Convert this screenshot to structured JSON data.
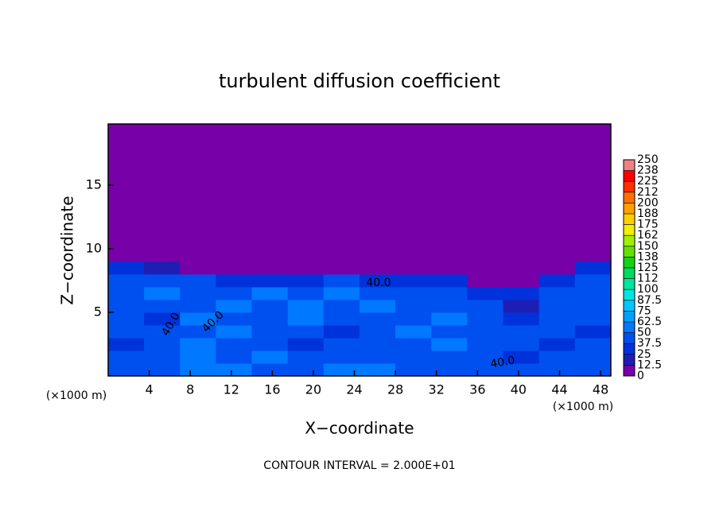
{
  "chart_data": {
    "type": "heatmap",
    "title": "turbulent diffusion coefficient",
    "x_label": "X−coordinate",
    "y_label": "Z−coordinate",
    "x_unit": "(×1000 m)",
    "footnote": "CONTOUR INTERVAL = 2.000E+01",
    "contour_labels": [
      "40.0",
      "40.0",
      "40.0",
      "40.0"
    ],
    "xlim": [
      0,
      49
    ],
    "ylim": [
      0,
      19.8
    ],
    "xticks": [
      4,
      8,
      12,
      16,
      20,
      24,
      28,
      32,
      36,
      40,
      44,
      48
    ],
    "yticks": [
      5,
      10,
      15
    ],
    "x_edges": [
      0,
      3.5,
      7,
      10.5,
      14,
      17.5,
      21,
      24.5,
      28,
      31.5,
      35,
      38.5,
      42,
      45.5,
      49
    ],
    "z_edges": [
      0,
      1,
      2,
      3,
      4,
      5,
      6,
      7,
      8,
      9,
      19.8
    ],
    "values": [
      [
        45,
        40,
        55,
        50,
        45,
        45,
        55,
        60,
        45,
        40,
        45,
        40,
        45,
        40
      ],
      [
        40,
        45,
        50,
        45,
        55,
        40,
        40,
        45,
        40,
        45,
        40,
        35,
        40,
        40
      ],
      [
        35,
        40,
        55,
        40,
        45,
        35,
        40,
        40,
        45,
        50,
        40,
        40,
        35,
        40
      ],
      [
        40,
        45,
        45,
        50,
        40,
        40,
        35,
        40,
        50,
        45,
        40,
        40,
        40,
        35
      ],
      [
        45,
        35,
        50,
        40,
        45,
        50,
        45,
        40,
        40,
        50,
        45,
        30,
        40,
        40
      ],
      [
        40,
        45,
        45,
        50,
        45,
        50,
        45,
        50,
        45,
        45,
        45,
        20,
        45,
        40
      ],
      [
        45,
        50,
        45,
        45,
        50,
        45,
        50,
        45,
        45,
        40,
        30,
        30,
        40,
        45
      ],
      [
        40,
        45,
        40,
        35,
        30,
        35,
        40,
        35,
        30,
        30,
        10,
        5,
        30,
        40
      ],
      [
        30,
        20,
        10,
        5,
        5,
        5,
        5,
        5,
        5,
        5,
        5,
        5,
        5,
        30
      ],
      [
        5,
        5,
        5,
        5,
        5,
        5,
        5,
        5,
        5,
        5,
        5,
        5,
        5,
        5
      ]
    ],
    "colorbar": {
      "ticks": [
        0,
        12.5,
        25,
        37.5,
        50,
        62.5,
        75,
        87.5,
        100,
        {
          "value": 112.5,
          "label": "112"
        },
        125,
        {
          "value": 137.5,
          "label": "138"
        },
        150,
        {
          "value": 162.5,
          "label": "162"
        },
        175,
        {
          "value": 187.5,
          "label": "188"
        },
        200,
        {
          "value": 212.5,
          "label": "212"
        },
        225,
        {
          "value": 237.5,
          "label": "238"
        },
        250
      ],
      "colors": [
        "#7800a8",
        "#1e1eb4",
        "#0032dc",
        "#0050f0",
        "#0078ff",
        "#00a0ff",
        "#00c8ff",
        "#00e6e0",
        "#00e6a0",
        "#00dc60",
        "#14d214",
        "#64e000",
        "#a0f000",
        "#f0f000",
        "#ffd000",
        "#ffa000",
        "#ff7000",
        "#ff3000",
        "#ff0000",
        "#f08080"
      ]
    }
  }
}
